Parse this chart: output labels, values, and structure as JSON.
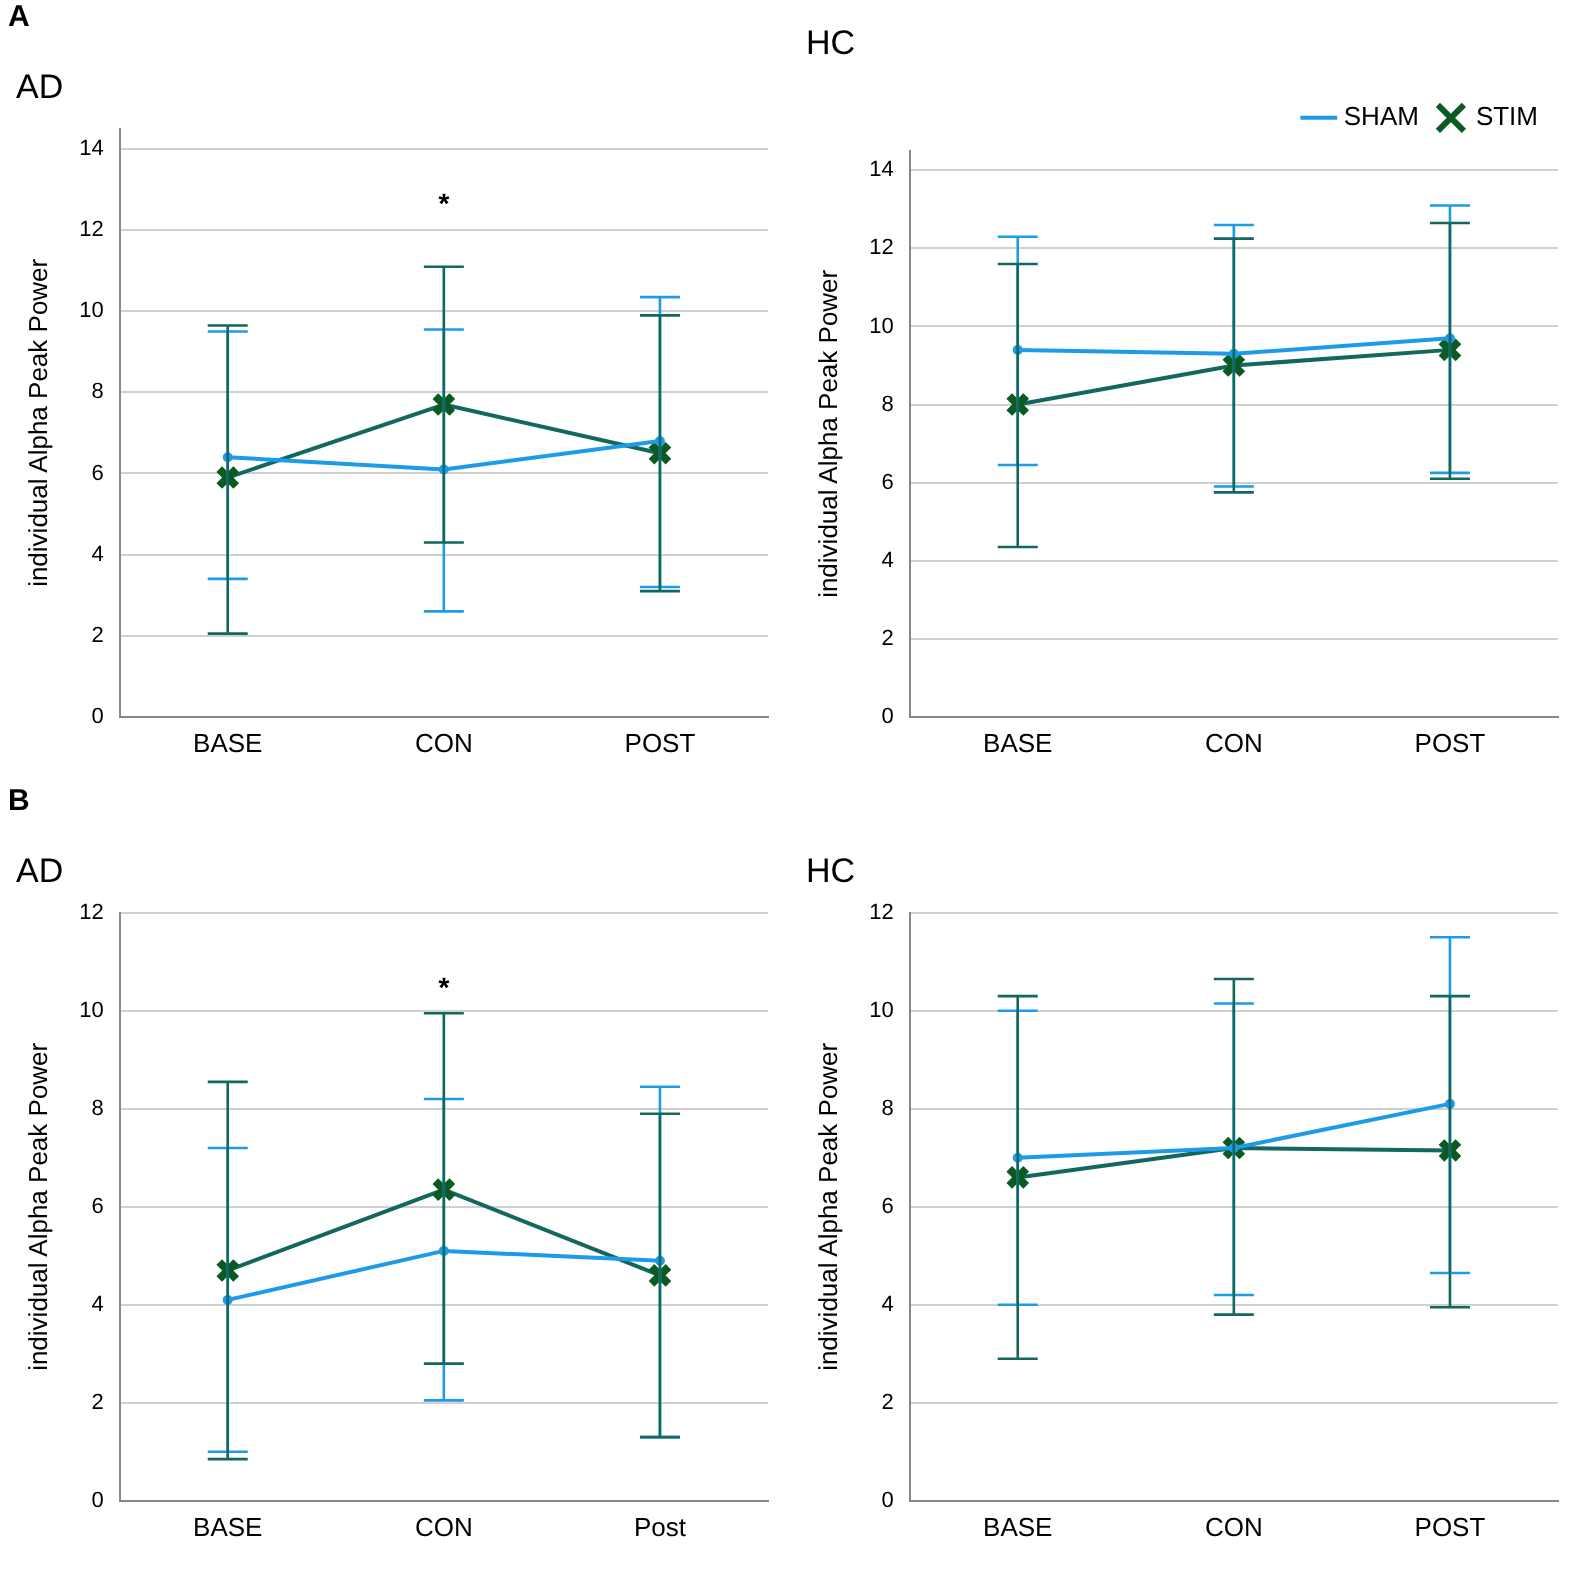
{
  "chart_data": [
    {
      "type": "line",
      "title": "AD",
      "ylabel": "individual Alpha Peak Power",
      "categories": [
        "BASE",
        "CON",
        "POST"
      ],
      "ylim": [
        0,
        14.5
      ],
      "yticks": [
        0,
        2,
        4,
        6,
        8,
        10,
        12,
        14
      ],
      "grid": "y",
      "legend": false,
      "annotations": [
        "A",
        "*"
      ],
      "series": [
        {
          "color": "#1e9be8",
          "marker": "circle",
          "values": [
            6.4,
            6.1,
            6.8
          ],
          "errors": [
            [
              3.4,
              9.5
            ],
            [
              2.6,
              9.55
            ],
            [
              3.2,
              10.35
            ]
          ]
        },
        {
          "color": "#12675e",
          "marker": "cross",
          "values": [
            5.9,
            7.7,
            6.5
          ],
          "errors": [
            [
              2.05,
              9.65
            ],
            [
              4.3,
              11.1
            ],
            [
              3.1,
              9.9
            ]
          ]
        }
      ]
    },
    {
      "type": "line",
      "title": "HC",
      "ylabel": "individual Alpha Peak Power",
      "categories": [
        "BASE",
        "CON",
        "POST"
      ],
      "ylim": [
        0,
        14.5
      ],
      "yticks": [
        0,
        2,
        4,
        6,
        8,
        10,
        12,
        14
      ],
      "grid": "y",
      "legend": "top right",
      "series": [
        {
          "name": "SHAM",
          "color": "#1e9be8",
          "marker": "circle",
          "values": [
            9.4,
            9.3,
            9.7
          ],
          "errors": [
            [
              6.45,
              12.3
            ],
            [
              5.9,
              12.6
            ],
            [
              6.25,
              13.1
            ]
          ]
        },
        {
          "name": "STIM",
          "color": "#12675e",
          "marker": "cross",
          "values": [
            8.0,
            9.0,
            9.4
          ],
          "errors": [
            [
              4.35,
              11.6
            ],
            [
              5.75,
              12.25
            ],
            [
              6.1,
              12.65
            ]
          ]
        }
      ]
    },
    {
      "type": "line",
      "title": "AD",
      "ylabel": "individual Alpha Peak Power",
      "categories": [
        "BASE",
        "CON",
        "Post"
      ],
      "ylim": [
        0,
        12
      ],
      "yticks": [
        0,
        2,
        4,
        6,
        8,
        10,
        12
      ],
      "grid": "y",
      "legend": false,
      "annotations": [
        "B",
        "*"
      ],
      "series": [
        {
          "color": "#1e9be8",
          "marker": "circle",
          "values": [
            4.1,
            5.1,
            4.9
          ],
          "errors": [
            [
              1.0,
              7.2
            ],
            [
              2.05,
              8.2
            ],
            [
              1.3,
              8.45
            ]
          ]
        },
        {
          "color": "#12675e",
          "marker": "cross",
          "values": [
            4.7,
            6.35,
            4.6
          ],
          "errors": [
            [
              0.85,
              8.55
            ],
            [
              2.8,
              9.95
            ],
            [
              1.3,
              7.9
            ]
          ]
        }
      ]
    },
    {
      "type": "line",
      "title": "HC",
      "ylabel": "individual Alpha Peak Power",
      "categories": [
        "BASE",
        "CON",
        "POST"
      ],
      "ylim": [
        0,
        12
      ],
      "yticks": [
        0,
        2,
        4,
        6,
        8,
        10,
        12
      ],
      "grid": "y",
      "legend": false,
      "series": [
        {
          "color": "#1e9be8",
          "marker": "circle",
          "values": [
            7.0,
            7.2,
            8.1
          ],
          "errors": [
            [
              4.0,
              10.0
            ],
            [
              4.2,
              10.15
            ],
            [
              4.65,
              11.5
            ]
          ]
        },
        {
          "color": "#12675e",
          "marker": "cross",
          "values": [
            6.6,
            7.2,
            7.15
          ],
          "errors": [
            [
              2.9,
              10.3
            ],
            [
              3.8,
              10.65
            ],
            [
              3.95,
              10.3
            ]
          ]
        }
      ]
    }
  ]
}
